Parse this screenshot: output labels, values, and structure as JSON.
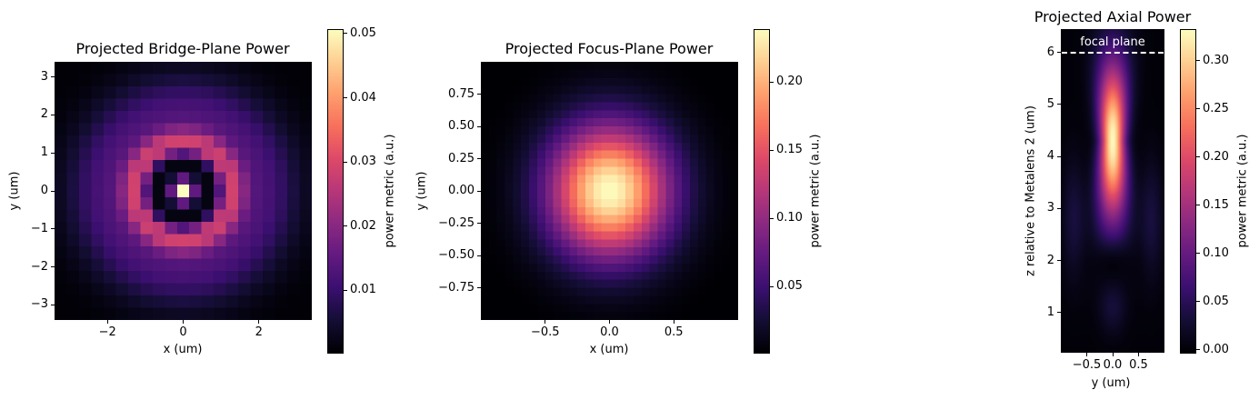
{
  "figure": {
    "colormap": "magma",
    "background": "#ffffff"
  },
  "chart_data": [
    {
      "type": "heatmap",
      "title": "Projected Bridge-Plane Power",
      "xlabel": "x (um)",
      "ylabel": "y (um)",
      "colorbar_label": "power metric (a.u.)",
      "grid": "21x21",
      "xlim": [
        -3.4,
        3.4
      ],
      "ylim": [
        -3.4,
        3.4
      ],
      "xticks": [
        -2,
        0,
        2
      ],
      "xtick_labels": [
        "−2",
        "0",
        "2"
      ],
      "yticks": [
        3,
        2,
        1,
        0,
        -1,
        -2,
        -3
      ],
      "ytick_labels": [
        "3",
        "2",
        "1",
        "0",
        "−1",
        "−2",
        "−3"
      ],
      "clim": [
        0.0003,
        0.0507
      ],
      "cticks": [
        0.05,
        0.04,
        0.03,
        0.02,
        0.01
      ],
      "ctick_labels": [
        "0.05",
        "0.04",
        "0.03",
        "0.02",
        "0.01"
      ],
      "description": "Bright central peak (~0.05) with dark ring at r~0.7um, first bright ring at r~1.2um (~0.02), broad diffuse halo out to r~2.8um",
      "model": {
        "kind": "airy_rings",
        "peak": 0.0505,
        "ring1_r": 1.25,
        "ring1_amp": 0.021,
        "halo_r": 2.0,
        "halo_amp": 0.012,
        "halo_w": 0.75
      }
    },
    {
      "type": "heatmap",
      "title": "Projected Focus-Plane Power",
      "xlabel": "x (um)",
      "ylabel": "y (um)",
      "colorbar_label": "power metric (a.u.)",
      "grid": "32x32",
      "xlim": [
        -1.0,
        1.0
      ],
      "ylim": [
        -1.0,
        1.0
      ],
      "xticks": [
        -0.5,
        0.0,
        0.5
      ],
      "xtick_labels": [
        "−0.5",
        "0.0",
        "0.5"
      ],
      "yticks": [
        0.75,
        0.5,
        0.25,
        0.0,
        -0.25,
        -0.5,
        -0.75
      ],
      "ytick_labels": [
        "0.75",
        "0.50",
        "0.25",
        "0.00",
        "−0.25",
        "−0.50",
        "−0.75"
      ],
      "clim": [
        0.0015,
        0.239
      ],
      "cticks": [
        0.2,
        0.15,
        0.1,
        0.05
      ],
      "ctick_labels": [
        "0.20",
        "0.15",
        "0.10",
        "0.05"
      ],
      "description": "Single Gaussian-like focal spot centered at (0,0), peak ~0.24, FWHM ~0.7um",
      "model": {
        "kind": "gaussian",
        "peak": 0.239,
        "sigma_x": 0.33,
        "sigma_y": 0.36
      }
    },
    {
      "type": "heatmap",
      "title": "Projected Axial Power",
      "xlabel": "y (um)",
      "ylabel": "z relative to Metalens 2 (um)",
      "colorbar_label": "power metric (a.u.)",
      "grid": "40x110",
      "xlim": [
        -1.0,
        1.0
      ],
      "ylim": [
        0.23,
        6.45
      ],
      "xticks": [
        -0.5,
        0.0,
        0.5
      ],
      "xtick_labels": [
        "−0.5",
        "0.0",
        "0.5"
      ],
      "yticks": [
        6,
        5,
        4,
        3,
        2,
        1
      ],
      "ytick_labels": [
        "6",
        "5",
        "4",
        "3",
        "2",
        "1"
      ],
      "clim": [
        -0.003,
        0.333
      ],
      "cticks": [
        0.3,
        0.25,
        0.2,
        0.15,
        0.1,
        0.05,
        0.0
      ],
      "ctick_labels": [
        "0.30",
        "0.25",
        "0.20",
        "0.15",
        "0.10",
        "0.05",
        "0.00"
      ],
      "annotations": [
        {
          "text": "focal plane",
          "z": 6.0,
          "style": "white dashed horizontal line"
        }
      ],
      "description": "Elongated focus along z peaking ~0.33 near z~4.3um, dark null near z~1.9um, weak secondary lobe near z~1.1um",
      "model": {
        "kind": "axial_focus",
        "peak": 0.333,
        "z_peak": 4.3
      }
    }
  ]
}
